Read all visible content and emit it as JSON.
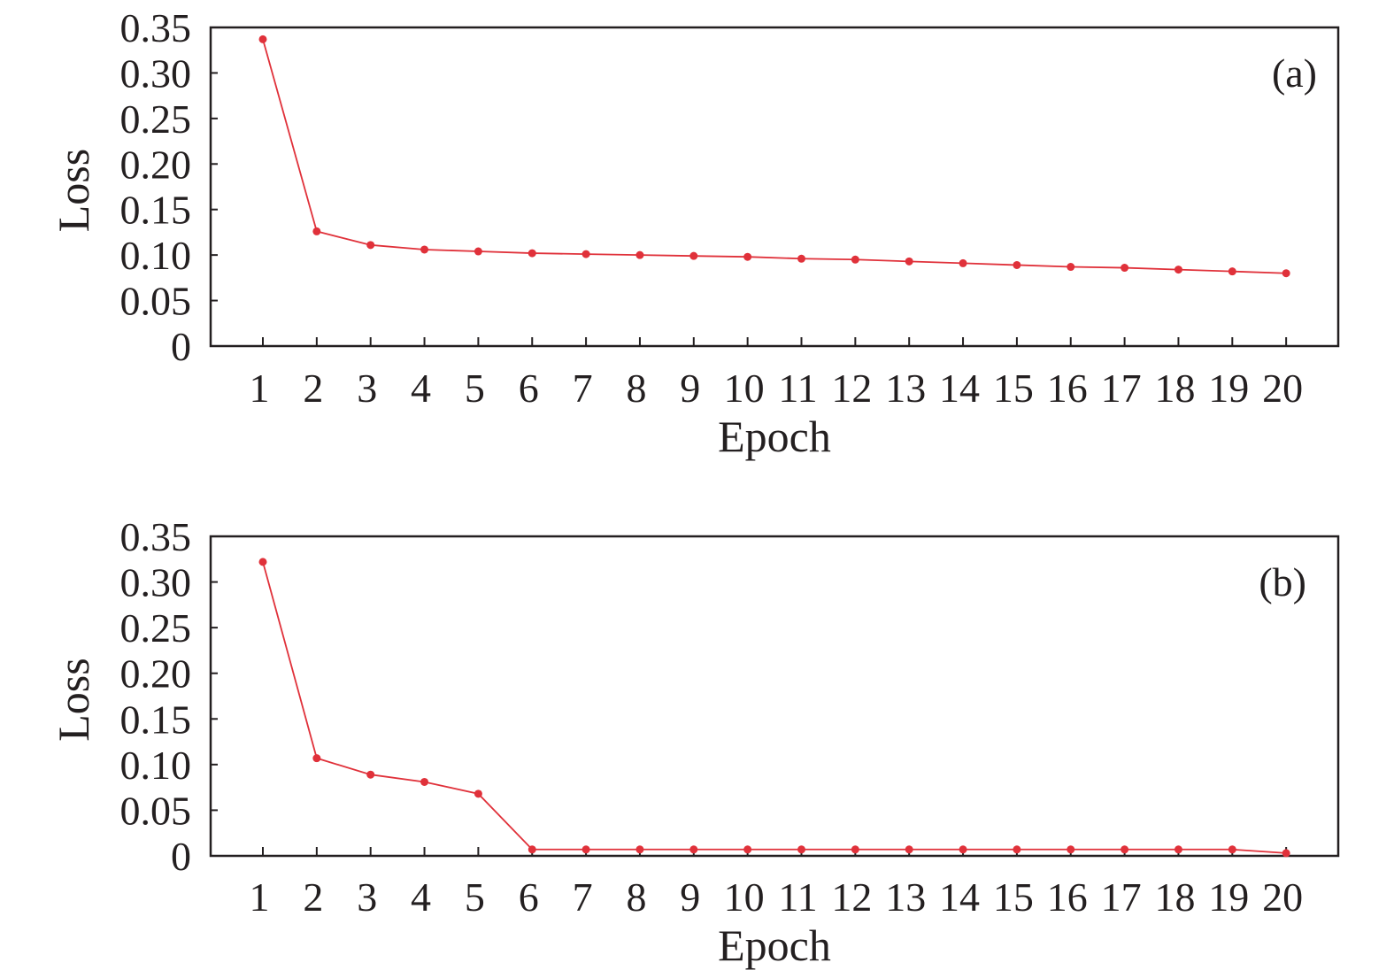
{
  "chart_data": [
    {
      "type": "line",
      "panel_label": "(a)",
      "xlabel": "Epoch",
      "ylabel": "Loss",
      "x": [
        1,
        2,
        3,
        4,
        5,
        6,
        7,
        8,
        9,
        10,
        11,
        12,
        13,
        14,
        15,
        16,
        17,
        18,
        19,
        20
      ],
      "x_tick_labels": [
        "1",
        "2",
        "3",
        "4",
        "5",
        "6",
        "7",
        "8",
        "9",
        "10",
        "11",
        "12",
        "13",
        "14",
        "15",
        "16",
        "17",
        "18",
        "19",
        "20"
      ],
      "y_tick_labels": [
        "0",
        "0.05",
        "0.10",
        "0.15",
        "0.20",
        "0.25",
        "0.30",
        "0.35"
      ],
      "y_ticks": [
        0,
        0.05,
        0.1,
        0.15,
        0.2,
        0.25,
        0.3,
        0.35
      ],
      "ylim": [
        0,
        0.35
      ],
      "grid": false,
      "series": [
        {
          "color": "#e0313a",
          "values": [
            0.337,
            0.126,
            0.111,
            0.106,
            0.104,
            0.102,
            0.101,
            0.1,
            0.099,
            0.098,
            0.096,
            0.095,
            0.093,
            0.091,
            0.089,
            0.087,
            0.086,
            0.084,
            0.082,
            0.08
          ]
        }
      ]
    },
    {
      "type": "line",
      "panel_label": "(b)",
      "xlabel": "Epoch",
      "ylabel": "Loss",
      "x": [
        1,
        2,
        3,
        4,
        5,
        6,
        7,
        8,
        9,
        10,
        11,
        12,
        13,
        14,
        15,
        16,
        17,
        18,
        19,
        20
      ],
      "x_tick_labels": [
        "1",
        "2",
        "3",
        "4",
        "5",
        "6",
        "7",
        "8",
        "9",
        "10",
        "11",
        "12",
        "13",
        "14",
        "15",
        "16",
        "17",
        "18",
        "19",
        "20"
      ],
      "y_tick_labels": [
        "0",
        "0.05",
        "0.10",
        "0.15",
        "0.20",
        "0.25",
        "0.30",
        "0.35"
      ],
      "y_ticks": [
        0,
        0.05,
        0.1,
        0.15,
        0.2,
        0.25,
        0.3,
        0.35
      ],
      "ylim": [
        0,
        0.35
      ],
      "grid": false,
      "series": [
        {
          "color": "#e0313a",
          "values": [
            0.322,
            0.107,
            0.089,
            0.081,
            0.068,
            0.007,
            0.007,
            0.007,
            0.007,
            0.007,
            0.007,
            0.007,
            0.007,
            0.007,
            0.007,
            0.007,
            0.007,
            0.007,
            0.007,
            0.003
          ]
        }
      ]
    }
  ]
}
